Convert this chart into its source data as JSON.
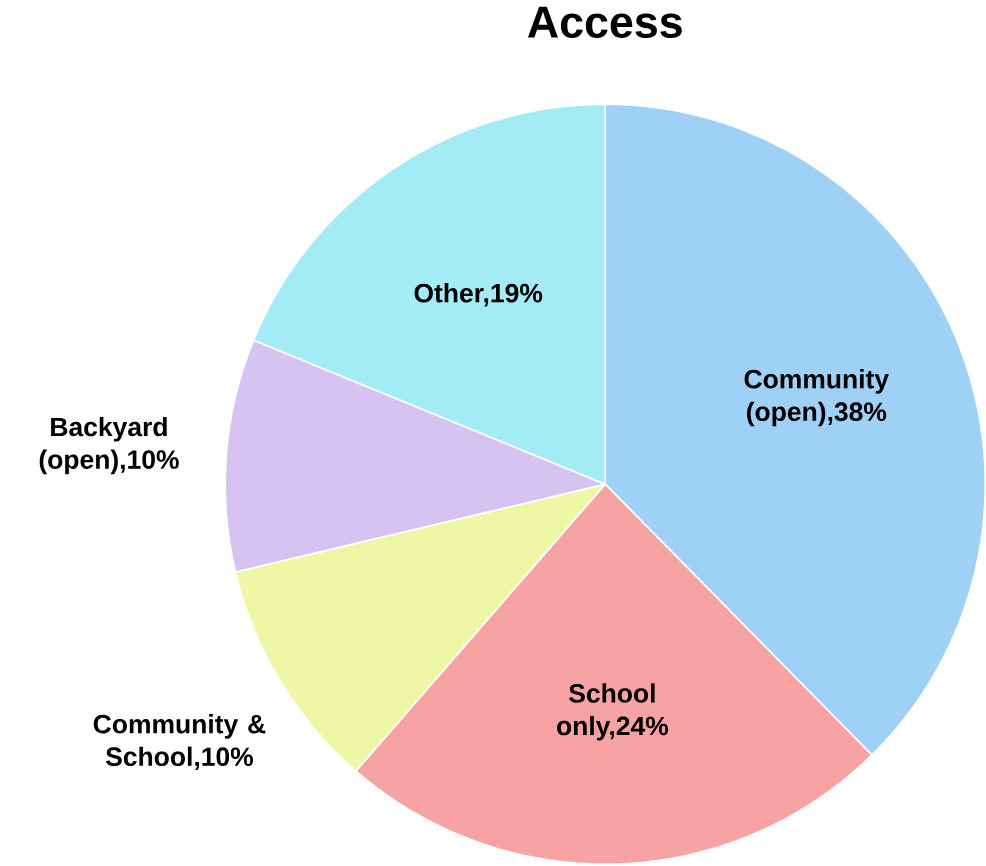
{
  "chart_data": {
    "type": "pie",
    "title": "Access",
    "categories": [
      "Community (open),38%",
      "School only,24%",
      "Community & School,10%",
      "Backyard (open),10%",
      "Other,19%"
    ],
    "values": [
      38,
      24,
      10,
      10,
      19
    ],
    "colors": [
      "#9fd0f6",
      "#f7a3a3",
      "#eef7a6",
      "#d6c3f2",
      "#a3ecf5"
    ]
  }
}
